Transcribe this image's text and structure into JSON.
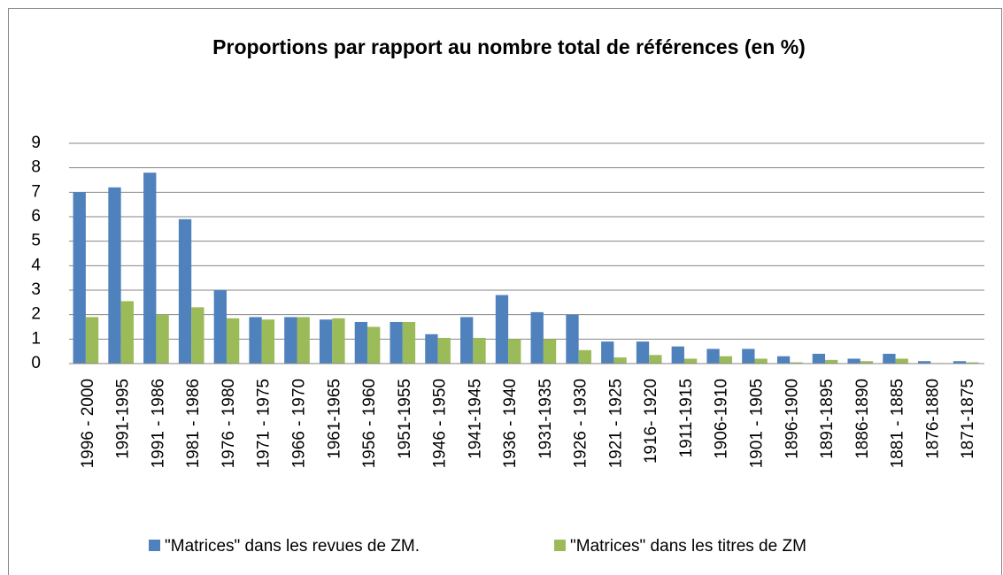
{
  "chart_data": {
    "type": "bar",
    "title": "Proportions par rapport au nombre total de références (en %)",
    "categories": [
      "1996 - 2000",
      "1991-1995",
      "1991 - 1986",
      "1981 - 1986",
      "1976 - 1980",
      "1971 - 1975",
      "1966 - 1970",
      "1961-1965",
      "1956 - 1960",
      "1951-1955",
      "1946 - 1950",
      "1941-1945",
      "1936 - 1940",
      "1931-1935",
      "1926 - 1930",
      "1921 - 1925",
      "1916- 1920",
      "1911-1915",
      "1906-1910",
      "1901 - 1905",
      "1896-1900",
      "1891-1895",
      "1886-1890",
      "1881 - 1885",
      "1876-1880",
      "1871-1875"
    ],
    "series": [
      {
        "name": "\"Matrices\" dans les revues de ZM.",
        "color": "#4f81bd",
        "values": [
          7.0,
          7.2,
          7.8,
          5.9,
          3.0,
          1.9,
          1.9,
          1.8,
          1.7,
          1.7,
          1.2,
          1.9,
          2.8,
          2.1,
          2.0,
          0.9,
          0.9,
          0.7,
          0.6,
          0.6,
          0.3,
          0.4,
          0.2,
          0.4,
          0.1,
          0.1
        ]
      },
      {
        "name": "\"Matrices\" dans les titres de ZM",
        "color": "#9bbb59",
        "values": [
          1.9,
          2.55,
          2.0,
          2.3,
          1.85,
          1.8,
          1.9,
          1.85,
          1.5,
          1.7,
          1.05,
          1.05,
          1.0,
          1.0,
          0.55,
          0.25,
          0.35,
          0.2,
          0.3,
          0.2,
          0.05,
          0.15,
          0.1,
          0.2,
          0.02,
          0.05
        ]
      }
    ],
    "ylim": [
      0,
      9
    ],
    "yticks": [
      0,
      1,
      2,
      3,
      4,
      5,
      6,
      7,
      8,
      9
    ],
    "grid": true,
    "legend": "bottom"
  }
}
